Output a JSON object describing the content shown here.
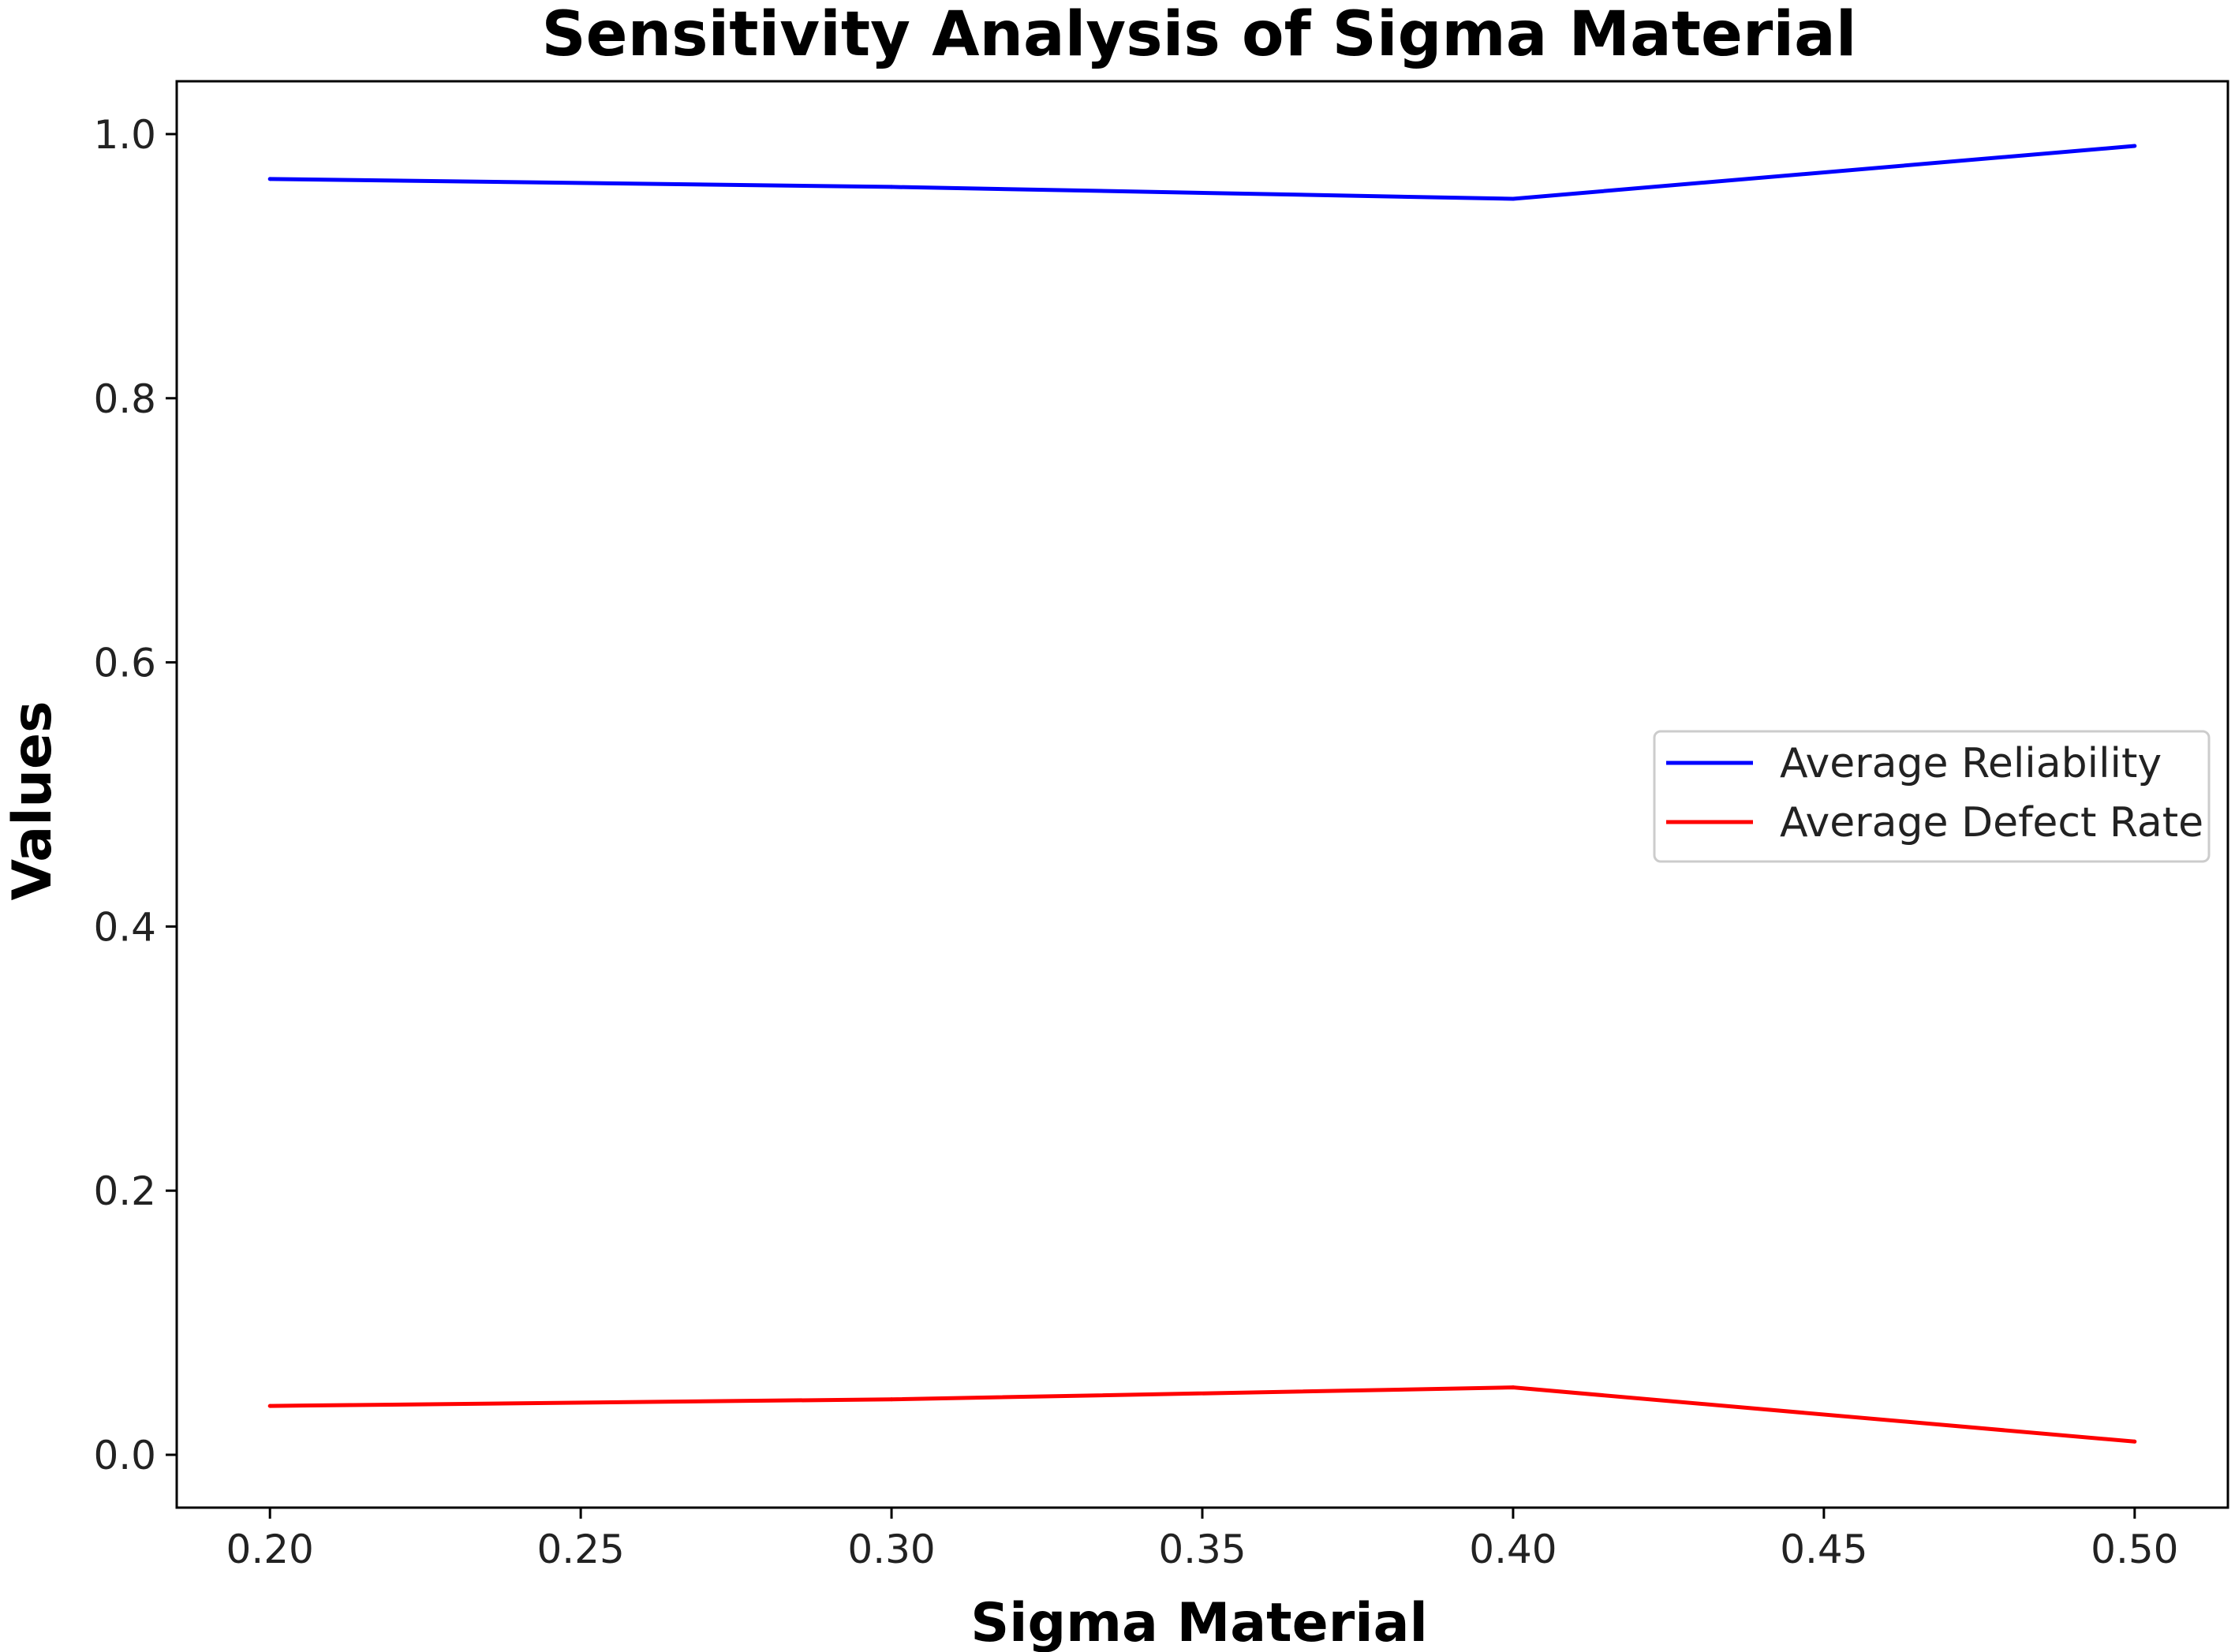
{
  "chart_data": {
    "type": "line",
    "title": "Sensitivity Analysis of Sigma Material",
    "xlabel": "Sigma Material",
    "ylabel": "Values",
    "xlim": [
      0.185,
      0.515
    ],
    "ylim": [
      -0.04,
      1.04
    ],
    "x_ticks": [
      "0.20",
      "0.25",
      "0.30",
      "0.35",
      "0.40",
      "0.45",
      "0.50"
    ],
    "y_ticks": [
      "0.0",
      "0.2",
      "0.4",
      "0.6",
      "0.8",
      "1.0"
    ],
    "x": [
      0.2,
      0.3,
      0.4,
      0.5
    ],
    "series": [
      {
        "name": "Average Reliability",
        "color": "#0000ff",
        "values": [
          0.966,
          0.96,
          0.951,
          0.991
        ]
      },
      {
        "name": "Average Defect Rate",
        "color": "#ff0000",
        "values": [
          0.037,
          0.042,
          0.051,
          0.01
        ]
      }
    ],
    "grid": false,
    "legend_position": "center-right"
  }
}
